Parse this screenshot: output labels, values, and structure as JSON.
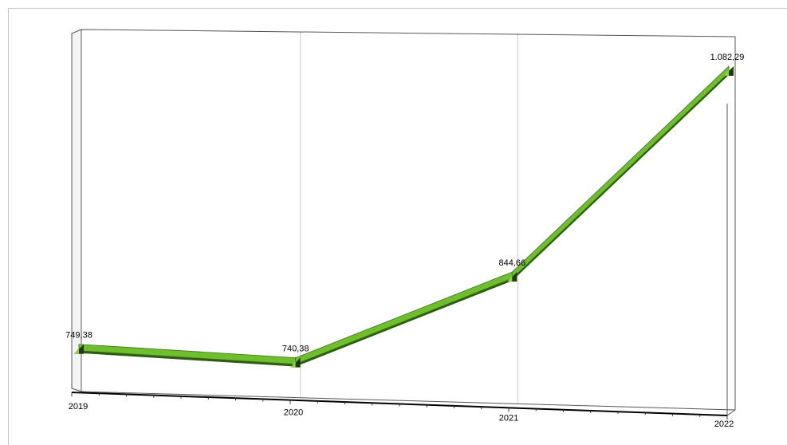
{
  "chart_data": {
    "type": "line",
    "categories": [
      "2019",
      "2020",
      "2021",
      "2022"
    ],
    "values": [
      749.38,
      740.38,
      844.66,
      1082.29
    ],
    "value_labels": [
      "749,38",
      "740,38",
      "844,66",
      "1.082,29"
    ],
    "title": "",
    "xlabel": "",
    "ylabel": "",
    "legend": "none",
    "grid": "vertical",
    "colors": {
      "line_face": "#6fbe2e",
      "line_shadow": "#2e5a12",
      "marker": "#1c3d08",
      "axis": "#000000",
      "grid": "#cccccc"
    }
  }
}
